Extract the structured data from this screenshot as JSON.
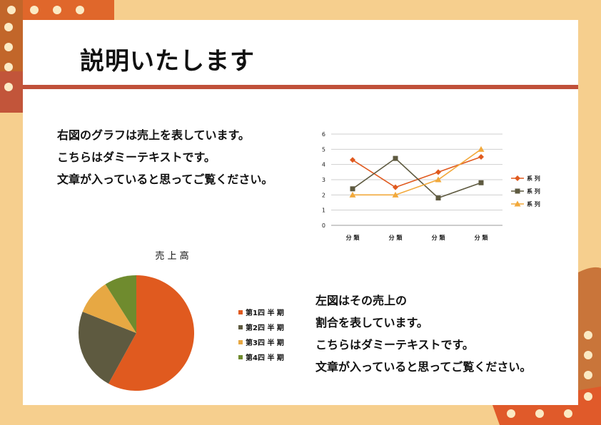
{
  "title": "説明いたします",
  "paragraph1": [
    "右図のグラフは売上を表しています。",
    "こちらはダミーテキストです。",
    "文章が入っていると思ってご覧ください。"
  ],
  "paragraph2": [
    "左図はその売上の",
    "割合を表しています。",
    "こちらはダミーテキストです。",
    "文章が入っていると思ってご覧ください。"
  ],
  "colors": {
    "background": "#f6cf8e",
    "rule": "#c0503a",
    "orange": "#e05a1f",
    "olive": "#5e5a40",
    "gold": "#e7a843",
    "green": "#6f8b2e"
  },
  "chart_data": [
    {
      "type": "line",
      "categories": [
        "分 類",
        "分 類",
        "分 類",
        "分 類"
      ],
      "ylim": [
        0,
        6
      ],
      "yticks": [
        "0",
        "1",
        "2",
        "3",
        "4",
        "5",
        "6"
      ],
      "series": [
        {
          "name": "系 列",
          "values": [
            4.3,
            2.5,
            3.5,
            4.5
          ],
          "color": "#e05a1f",
          "marker": "diamond"
        },
        {
          "name": "系 列",
          "values": [
            2.4,
            4.4,
            1.8,
            2.8
          ],
          "color": "#5e5a40",
          "marker": "square"
        },
        {
          "name": "系 列",
          "values": [
            2.0,
            2.0,
            3.0,
            5.0
          ],
          "color": "#f2a93b",
          "marker": "triangle"
        }
      ],
      "grid": true,
      "legend": "right"
    },
    {
      "type": "pie",
      "title": "売 上 高",
      "labels": [
        "第1四 半 期",
        "第2四 半 期",
        "第3四 半 期",
        "第4四 半 期"
      ],
      "values": [
        58,
        23,
        10,
        9
      ],
      "colors": [
        "#e05a1f",
        "#5e5a40",
        "#e7a843",
        "#6f8b2e"
      ],
      "legend": "right"
    }
  ]
}
